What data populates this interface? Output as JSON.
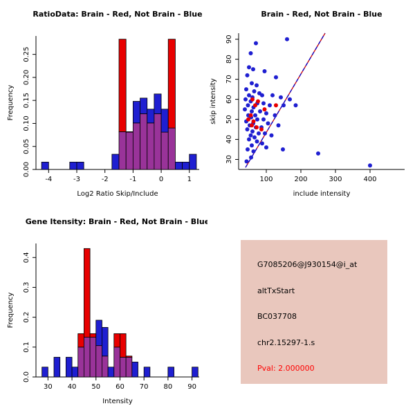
{
  "colors": {
    "red": "#E80000",
    "blue": "#1F1FD1",
    "overlap": "#993399",
    "fit_line_red": "#CC0000",
    "fit_line_blue": "#0000CC",
    "info_box_bg": "#E9C7BD",
    "pval_text": "#FF0000"
  },
  "panels": {
    "info_box": {
      "bg_color": "#E9C7BD",
      "lines": [
        {
          "text": "G7085206@J930154@i_at",
          "color": "#000000"
        },
        {
          "text": "altTxStart",
          "color": "#000000"
        },
        {
          "text": "BC037708",
          "color": "#000000"
        },
        {
          "text": "chr2.15297-1.s",
          "color": "#000000"
        },
        {
          "text": "Pval: 2.000000",
          "color": "#FF0000"
        }
      ]
    }
  },
  "chart_data": [
    {
      "type": "bar",
      "subtype": "overlaid-histogram",
      "panel": "top-left",
      "title": "RatioData: Brain - Red, Not Brain - Blue",
      "xlabel": "Log2 Ratio Skip/Include",
      "ylabel": "Frequency",
      "xlim": [
        -4.45,
        1.35
      ],
      "ylim": [
        0,
        0.29
      ],
      "xticks": [
        -4,
        -3,
        -2,
        -1,
        0,
        1
      ],
      "yticks": [
        0,
        0.05,
        0.1,
        0.15,
        0.2,
        0.25
      ],
      "ytick_labels": [
        "0.00",
        "0.05",
        "0.10",
        "0.15",
        "0.20",
        "0.25"
      ],
      "bin_width": 0.25,
      "series_legend": {
        "red": "Brain",
        "blue": "Not Brain"
      },
      "blue": [
        [
          -4.25,
          0.016
        ],
        [
          -3.25,
          0.016
        ],
        [
          -3.0,
          0.016
        ],
        [
          -1.75,
          0.033
        ],
        [
          -1.5,
          0.082
        ],
        [
          -1.25,
          0.082
        ],
        [
          -1.0,
          0.148
        ],
        [
          -0.75,
          0.155
        ],
        [
          -0.5,
          0.131
        ],
        [
          -0.25,
          0.164
        ],
        [
          0.0,
          0.131
        ],
        [
          0.25,
          0.09
        ],
        [
          0.5,
          0.016
        ],
        [
          0.75,
          0.016
        ],
        [
          1.0,
          0.033
        ]
      ],
      "red": [
        [
          -1.5,
          0.283
        ],
        [
          -1.25,
          0.081
        ],
        [
          -1.0,
          0.101
        ],
        [
          -0.75,
          0.121
        ],
        [
          -0.5,
          0.101
        ],
        [
          -0.25,
          0.121
        ],
        [
          0.0,
          0.081
        ],
        [
          0.25,
          0.283
        ]
      ]
    },
    {
      "type": "scatter",
      "panel": "top-right",
      "title": "Brain - Red, Not Brain - Blue",
      "xlabel": "include intensity",
      "ylabel": "skip intensity",
      "xlim": [
        20,
        500
      ],
      "ylim": [
        25,
        93
      ],
      "xticks": [
        100,
        200,
        300,
        400
      ],
      "yticks": [
        30,
        40,
        50,
        60,
        70,
        80,
        90
      ],
      "series_legend": {
        "red": "Brain",
        "blue": "Not Brain"
      },
      "lines": [
        {
          "x1": 40,
          "y1": 26,
          "x2": 270,
          "y2": 93,
          "color": "#CC0000",
          "dash": ""
        },
        {
          "x1": 40,
          "y1": 26,
          "x2": 270,
          "y2": 93,
          "color": "#0000CC",
          "dash": "5,4"
        }
      ],
      "blue_points": [
        [
          55,
          83
        ],
        [
          70,
          88
        ],
        [
          160,
          90
        ],
        [
          50,
          76
        ],
        [
          62,
          75
        ],
        [
          45,
          72
        ],
        [
          95,
          74
        ],
        [
          128,
          71
        ],
        [
          58,
          68
        ],
        [
          72,
          67
        ],
        [
          42,
          65
        ],
        [
          65,
          64
        ],
        [
          80,
          63
        ],
        [
          50,
          62
        ],
        [
          88,
          62
        ],
        [
          60,
          61
        ],
        [
          118,
          62
        ],
        [
          142,
          61
        ],
        [
          40,
          60
        ],
        [
          55,
          59
        ],
        [
          74,
          58
        ],
        [
          92,
          58
        ],
        [
          110,
          57
        ],
        [
          47,
          57
        ],
        [
          63,
          56
        ],
        [
          150,
          57
        ],
        [
          38,
          55
        ],
        [
          58,
          54
        ],
        [
          82,
          54
        ],
        [
          100,
          53
        ],
        [
          68,
          52
        ],
        [
          48,
          52
        ],
        [
          125,
          52
        ],
        [
          56,
          51
        ],
        [
          74,
          50
        ],
        [
          92,
          50
        ],
        [
          42,
          49
        ],
        [
          62,
          48
        ],
        [
          105,
          48
        ],
        [
          52,
          47
        ],
        [
          70,
          46
        ],
        [
          86,
          46
        ],
        [
          135,
          47
        ],
        [
          45,
          45
        ],
        [
          60,
          44
        ],
        [
          78,
          43
        ],
        [
          96,
          43
        ],
        [
          55,
          42
        ],
        [
          115,
          42
        ],
        [
          66,
          41
        ],
        [
          50,
          40
        ],
        [
          73,
          39
        ],
        [
          88,
          38
        ],
        [
          58,
          37
        ],
        [
          168,
          60
        ],
        [
          185,
          57
        ],
        [
          100,
          36
        ],
        [
          46,
          35
        ],
        [
          63,
          34
        ],
        [
          148,
          35
        ],
        [
          250,
          33
        ],
        [
          56,
          31
        ],
        [
          43,
          29
        ],
        [
          400,
          27
        ]
      ],
      "red_points": [
        [
          60,
          60
        ],
        [
          76,
          59
        ],
        [
          68,
          57
        ],
        [
          55,
          52
        ],
        [
          48,
          50
        ],
        [
          63,
          49
        ],
        [
          58,
          47
        ],
        [
          72,
          46
        ],
        [
          95,
          55
        ],
        [
          128,
          57
        ],
        [
          86,
          45
        ]
      ]
    },
    {
      "type": "bar",
      "subtype": "overlaid-histogram",
      "panel": "bottom-left",
      "title": "Gene Itensity: Brain - Red, Not Brain - Blue",
      "xlabel": "Intensity",
      "ylabel": "Frequency",
      "xlim": [
        25,
        93
      ],
      "ylim": [
        0,
        0.447
      ],
      "xticks": [
        30,
        40,
        50,
        60,
        70,
        80,
        90
      ],
      "yticks": [
        0,
        0.1,
        0.2,
        0.3,
        0.4
      ],
      "ytick_labels": [
        "0.0",
        "0.1",
        "0.2",
        "0.3",
        "0.4"
      ],
      "bin_width": 2.5,
      "series_legend": {
        "red": "Brain",
        "blue": "Not Brain"
      },
      "blue": [
        [
          27.5,
          0.033
        ],
        [
          32.5,
          0.066
        ],
        [
          37.5,
          0.066
        ],
        [
          40.0,
          0.033
        ],
        [
          42.5,
          0.1
        ],
        [
          45.0,
          0.133
        ],
        [
          47.5,
          0.133
        ],
        [
          50.0,
          0.19
        ],
        [
          52.5,
          0.166
        ],
        [
          55.0,
          0.033
        ],
        [
          57.5,
          0.1
        ],
        [
          60.0,
          0.066
        ],
        [
          62.5,
          0.066
        ],
        [
          65.0,
          0.05
        ],
        [
          70.0,
          0.033
        ],
        [
          80.0,
          0.033
        ],
        [
          90.0,
          0.033
        ]
      ],
      "red": [
        [
          42.5,
          0.145
        ],
        [
          45.0,
          0.43
        ],
        [
          47.5,
          0.145
        ],
        [
          50.0,
          0.105
        ],
        [
          52.5,
          0.07
        ],
        [
          57.5,
          0.145
        ],
        [
          60.0,
          0.145
        ],
        [
          62.5,
          0.07
        ]
      ]
    }
  ]
}
